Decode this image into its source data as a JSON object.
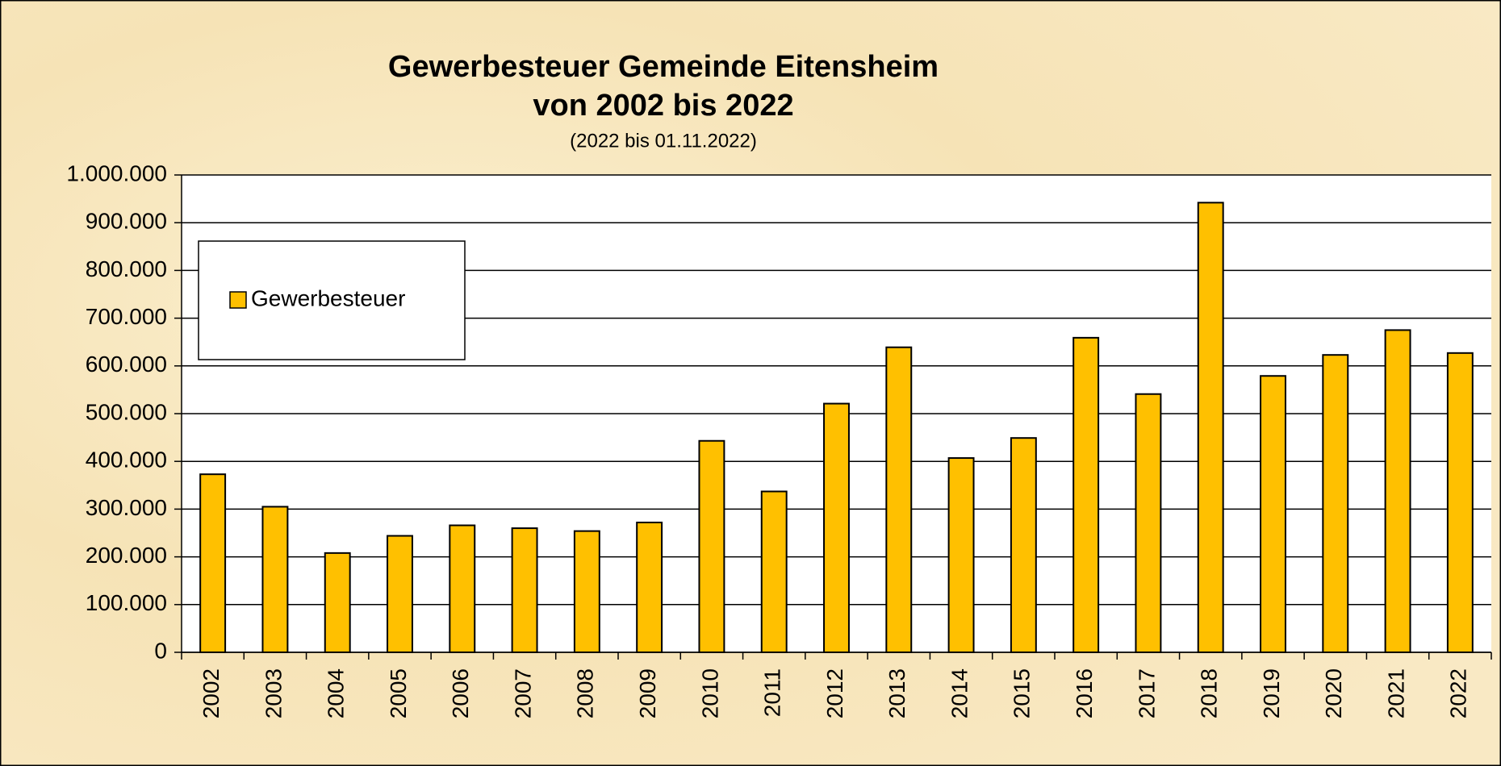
{
  "chart_data": {
    "type": "bar",
    "title": [
      "Gewerbesteuer Gemeinde Eitensheim",
      "von 2002 bis 2022"
    ],
    "subtitle": "(2022 bis 01.11.2022)",
    "categories": [
      "2002",
      "2003",
      "2004",
      "2005",
      "2006",
      "2007",
      "2008",
      "2009",
      "2010",
      "2011",
      "2012",
      "2013",
      "2014",
      "2015",
      "2016",
      "2017",
      "2018",
      "2019",
      "2020",
      "2021",
      "2022"
    ],
    "series": [
      {
        "name": "Gewerbesteuer",
        "color": "#ffc000",
        "values": [
          373000,
          305000,
          208000,
          244000,
          266000,
          260000,
          254000,
          272000,
          443000,
          337000,
          521000,
          639000,
          407000,
          449000,
          659000,
          541000,
          942000,
          579000,
          623000,
          675000,
          627000
        ]
      }
    ],
    "ylim": [
      0,
      1000000
    ],
    "yticks": [
      0,
      {
        "value": 100000,
        "label": "100.000"
      },
      {
        "value": 200000,
        "label": "200.000"
      },
      {
        "value": 300000,
        "label": "300.000"
      },
      {
        "value": 400000,
        "label": "400.000"
      },
      {
        "value": 500000,
        "label": "500.000"
      },
      {
        "value": 600000,
        "label": "600.000"
      },
      {
        "value": 700000,
        "label": "700.000"
      },
      {
        "value": 800000,
        "label": "800.000"
      },
      {
        "value": 900000,
        "label": "900.000"
      },
      {
        "value": 1000000,
        "label": "1.000.000"
      }
    ],
    "grid": true,
    "legend": "upper left"
  }
}
